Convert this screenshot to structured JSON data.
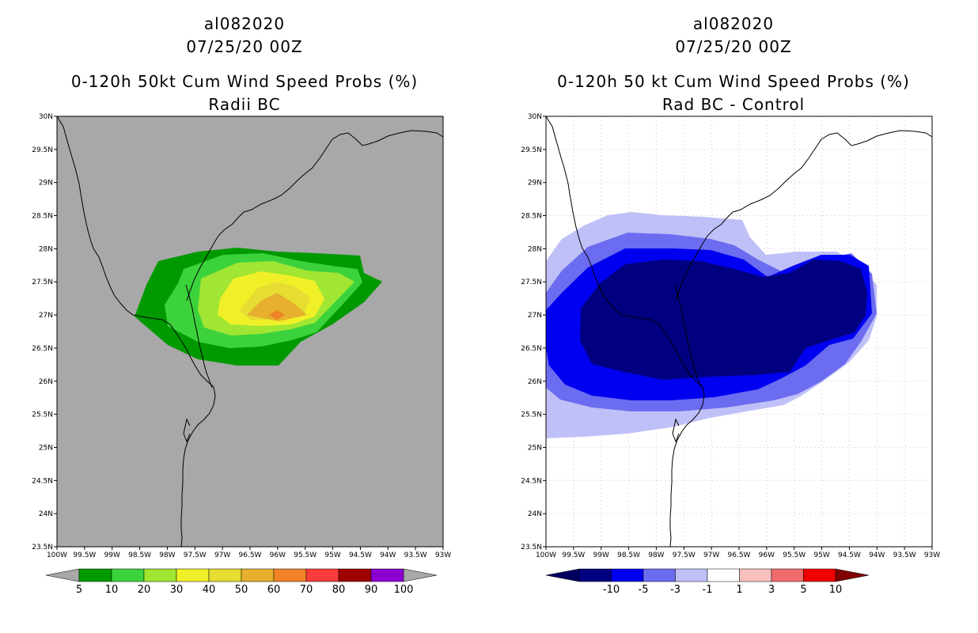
{
  "left": {
    "storm_id": "al082020",
    "date": "07/25/20 00Z",
    "title": "0-120h 50kt Cum Wind Speed Probs (%)",
    "subtitle": "Radii BC",
    "background_color": "#a8a8a8",
    "colorbar": {
      "colors": [
        "#009a00",
        "#3cd23c",
        "#a0e632",
        "#f0f028",
        "#e6dc32",
        "#e6af2d",
        "#f08228",
        "#fa3c3c",
        "#a00000",
        "#8c00d2"
      ],
      "labels": [
        "5",
        "10",
        "20",
        "30",
        "40",
        "50",
        "60",
        "70",
        "80",
        "90",
        "100"
      ]
    }
  },
  "right": {
    "storm_id": "al082020",
    "date": "07/25/20 00Z",
    "title": "0-120h 50 kt Cum Wind Speed Probs (%)",
    "subtitle": "Rad BC - Control",
    "background_color": "#ffffff",
    "colorbar": {
      "colors": [
        "#000080",
        "#0000f0",
        "#6c6cf0",
        "#c0c0f8",
        "#ffffff",
        "#fac0c0",
        "#f06c6c",
        "#f00000"
      ],
      "labels": [
        "-10",
        "-5",
        "-3",
        "-1",
        "1",
        "3",
        "5",
        "10"
      ],
      "lower_arrow_color": "#000060",
      "upper_arrow_color": "#800000"
    }
  },
  "axes": {
    "lat_labels": [
      "30N",
      "29.5N",
      "29N",
      "28.5N",
      "28N",
      "27.5N",
      "27N",
      "26.5N",
      "26N",
      "25.5N",
      "25N",
      "24.5N",
      "24N",
      "23.5N"
    ],
    "lon_labels": [
      "100W",
      "99.5W",
      "99W",
      "98.5W",
      "98W",
      "97.5W",
      "97W",
      "96.5W",
      "96W",
      "95.5W",
      "95W",
      "94.5W",
      "94W",
      "93.5W",
      "93W"
    ]
  },
  "colors": {
    "coastline": "#000000",
    "gridline": "#c8c8c8",
    "frame": "#000000"
  }
}
